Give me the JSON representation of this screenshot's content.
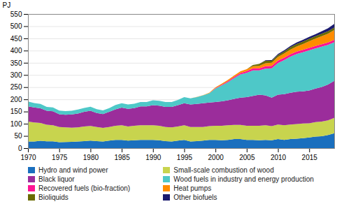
{
  "chart_data": {
    "type": "area",
    "stacked": true,
    "grid": true,
    "legend": "bottom",
    "ylabel": "PJ",
    "x": [
      1970,
      1971,
      1972,
      1973,
      1974,
      1975,
      1976,
      1977,
      1978,
      1979,
      1980,
      1981,
      1982,
      1983,
      1984,
      1985,
      1986,
      1987,
      1988,
      1989,
      1990,
      1991,
      1992,
      1993,
      1994,
      1995,
      1996,
      1997,
      1998,
      1999,
      2000,
      2001,
      2002,
      2003,
      2004,
      2005,
      2006,
      2007,
      2008,
      2009,
      2010,
      2011,
      2012,
      2013,
      2014,
      2015,
      2016,
      2017,
      2018,
      2019
    ],
    "xlim": [
      1970,
      2019
    ],
    "xticks": [
      1970,
      1975,
      1980,
      1985,
      1990,
      1995,
      2000,
      2005,
      2010,
      2015
    ],
    "ylim": [
      0,
      550
    ],
    "yticks": [
      0,
      50,
      100,
      150,
      200,
      250,
      300,
      350,
      400,
      450,
      500,
      550
    ],
    "series": [
      {
        "name": "Hydro and wind power",
        "color": "#1a6fbe",
        "values": [
          27,
          27,
          30,
          28,
          28,
          24,
          25,
          26,
          27,
          29,
          31,
          29,
          27,
          31,
          34,
          34,
          31,
          32,
          34,
          34,
          34,
          32,
          29,
          27,
          31,
          34,
          27,
          29,
          31,
          34,
          34,
          32,
          34,
          37,
          37,
          34,
          34,
          32,
          34,
          32,
          37,
          34,
          37,
          39,
          41,
          44,
          47,
          49,
          54,
          61
        ]
      },
      {
        "name": "Small-scale combustion of wood",
        "color": "#c8d44e",
        "values": [
          82,
          78,
          73,
          68,
          66,
          63,
          60,
          58,
          58,
          60,
          60,
          58,
          56,
          56,
          58,
          60,
          58,
          60,
          60,
          60,
          60,
          60,
          58,
          58,
          58,
          60,
          60,
          58,
          56,
          56,
          58,
          60,
          60,
          58,
          58,
          58,
          58,
          60,
          60,
          58,
          60,
          60,
          60,
          60,
          60,
          58,
          60,
          60,
          60,
          63
        ]
      },
      {
        "name": "Black liquor",
        "color": "#9b2d9b",
        "values": [
          62,
          62,
          60,
          57,
          57,
          52,
          52,
          54,
          57,
          60,
          62,
          57,
          57,
          62,
          67,
          72,
          72,
          72,
          77,
          77,
          82,
          82,
          82,
          84,
          87,
          90,
          92,
          94,
          97,
          97,
          97,
          100,
          102,
          107,
          112,
          117,
          122,
          127,
          122,
          117,
          122,
          127,
          130,
          132,
          132,
          134,
          137,
          142,
          147,
          152
        ]
      },
      {
        "name": "Wood fuels in industry and energy production",
        "color": "#4ec8c8",
        "values": [
          20,
          18,
          18,
          16,
          16,
          15,
          15,
          15,
          16,
          16,
          17,
          16,
          15,
          15,
          18,
          18,
          18,
          18,
          18,
          18,
          20,
          20,
          20,
          20,
          22,
          25,
          25,
          28,
          32,
          38,
          55,
          65,
          75,
          85,
          95,
          100,
          105,
          100,
          110,
          120,
          130,
          140,
          148,
          155,
          160,
          165,
          165,
          165,
          162,
          158
        ]
      },
      {
        "name": "Recovered fuels (bio-fraction)",
        "color": "#ff1493",
        "values": [
          0,
          0,
          0,
          0,
          0,
          0,
          0,
          0,
          0,
          0,
          0,
          0,
          0,
          0,
          0,
          0,
          0,
          0,
          0,
          0,
          0,
          0,
          0,
          0,
          0,
          0,
          0,
          0,
          0,
          0,
          2,
          3,
          4,
          5,
          6,
          7,
          8,
          8,
          10,
          10,
          10,
          10,
          10,
          10,
          10,
          10,
          10,
          10,
          10,
          10
        ]
      },
      {
        "name": "Heat pumps",
        "color": "#ff8c00",
        "values": [
          0,
          0,
          0,
          0,
          0,
          0,
          0,
          0,
          0,
          0,
          0,
          0,
          0,
          0,
          0,
          0,
          0,
          0,
          0,
          0,
          0,
          0,
          0,
          0,
          0,
          0,
          0,
          1,
          1,
          2,
          3,
          4,
          5,
          6,
          7,
          8,
          9,
          10,
          12,
          13,
          15,
          17,
          19,
          21,
          24,
          27,
          30,
          33,
          36,
          40
        ]
      },
      {
        "name": "Bioliquids",
        "color": "#6b6b00",
        "values": [
          0,
          0,
          0,
          0,
          0,
          0,
          0,
          0,
          0,
          0,
          0,
          0,
          0,
          0,
          0,
          0,
          0,
          0,
          0,
          0,
          0,
          0,
          0,
          0,
          0,
          0,
          0,
          0,
          0,
          0,
          0,
          0,
          0,
          0,
          0,
          0,
          5,
          8,
          10,
          8,
          8,
          8,
          10,
          10,
          10,
          10,
          10,
          10,
          10,
          10
        ]
      },
      {
        "name": "Other biofuels",
        "color": "#1a1a6e",
        "values": [
          0,
          0,
          0,
          0,
          0,
          0,
          0,
          0,
          0,
          0,
          0,
          0,
          0,
          0,
          0,
          0,
          0,
          0,
          0,
          0,
          0,
          0,
          0,
          0,
          0,
          0,
          0,
          0,
          0,
          0,
          0,
          0,
          0,
          0,
          0,
          0,
          0,
          0,
          2,
          3,
          4,
          5,
          5,
          6,
          7,
          8,
          8,
          10,
          12,
          15
        ]
      }
    ]
  }
}
